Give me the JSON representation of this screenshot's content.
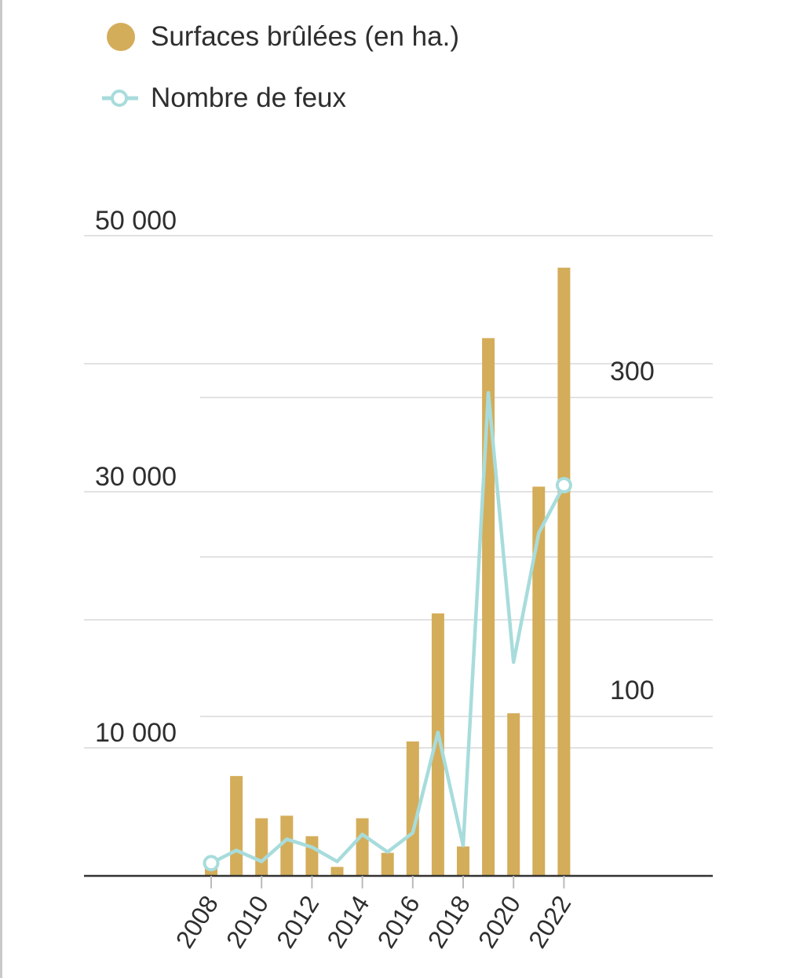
{
  "legend": {
    "bars_label": "Surfaces brûlées (en ha.)",
    "line_label": "Nombre de feux"
  },
  "colors": {
    "bar": "#d4ad5a",
    "line": "#a8dcdc",
    "grid": "#e2e2e2",
    "axis": "#333333",
    "text": "#2e2e2e"
  },
  "chart_data": {
    "type": "bar",
    "title": "",
    "xlabel": "",
    "ylabel": "",
    "categories": [
      "2008",
      "2009",
      "2010",
      "2011",
      "2012",
      "2013",
      "2014",
      "2015",
      "2016",
      "2017",
      "2018",
      "2019",
      "2020",
      "2021",
      "2022"
    ],
    "x_tick_labels": [
      "2008",
      "2010",
      "2012",
      "2014",
      "2016",
      "2018",
      "2020",
      "2022"
    ],
    "series": [
      {
        "name": "Surfaces brûlées (en ha.)",
        "type": "bar",
        "axis": "left",
        "values": [
          600,
          7800,
          4500,
          4700,
          3100,
          700,
          4500,
          1800,
          10500,
          20500,
          2300,
          42000,
          12700,
          30400,
          47500
        ]
      },
      {
        "name": "Nombre de feux",
        "type": "line",
        "axis": "right",
        "values": [
          8,
          16,
          9,
          23,
          18,
          9,
          26,
          15,
          27,
          90,
          19,
          303,
          134,
          215,
          245
        ]
      }
    ],
    "y_left": {
      "range": [
        0,
        50000
      ],
      "tick_labels": [
        "50 000",
        "30 000",
        "10 000"
      ],
      "ticks": [
        50000,
        30000,
        10000
      ],
      "gridlines": [
        0,
        10000,
        20000,
        30000,
        40000,
        50000
      ]
    },
    "y_right": {
      "range": [
        0,
        400
      ],
      "tick_labels": [
        "300",
        "100"
      ],
      "ticks": [
        300,
        100
      ],
      "gridlines": [
        0,
        100,
        200,
        300
      ]
    },
    "line_end_markers": [
      "first",
      "last"
    ],
    "grid": true,
    "legend_position": "top-left"
  }
}
